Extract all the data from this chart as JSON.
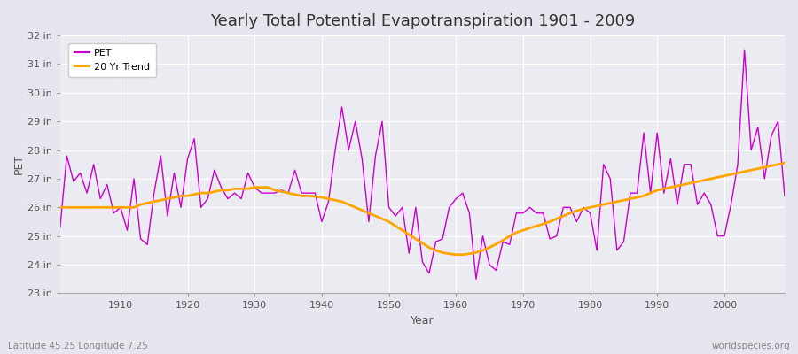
{
  "title": "Yearly Total Potential Evapotranspiration 1901 - 2009",
  "xlabel": "Year",
  "ylabel": "PET",
  "subtitle_left": "Latitude 45.25 Longitude 7.25",
  "subtitle_right": "worldspecies.org",
  "pet_color": "#cc00cc",
  "trend_color": "#ffa500",
  "bg_color": "#e6e6ee",
  "plot_bg_color": "#ebebf2",
  "ylim": [
    23,
    32
  ],
  "yticks": [
    23,
    24,
    25,
    26,
    27,
    28,
    29,
    30,
    31,
    32
  ],
  "ytick_labels": [
    "23 in",
    "24 in",
    "25 in",
    "26 in",
    "27 in",
    "28 in",
    "29 in",
    "30 in",
    "31 in",
    "32 in"
  ],
  "xlim": [
    1901,
    2009
  ],
  "xticks": [
    1910,
    1920,
    1930,
    1940,
    1950,
    1960,
    1970,
    1980,
    1990,
    2000
  ],
  "years": [
    1901,
    1902,
    1903,
    1904,
    1905,
    1906,
    1907,
    1908,
    1909,
    1910,
    1911,
    1912,
    1913,
    1914,
    1915,
    1916,
    1917,
    1918,
    1919,
    1920,
    1921,
    1922,
    1923,
    1924,
    1925,
    1926,
    1927,
    1928,
    1929,
    1930,
    1931,
    1932,
    1933,
    1934,
    1935,
    1936,
    1937,
    1938,
    1939,
    1940,
    1941,
    1942,
    1943,
    1944,
    1945,
    1946,
    1947,
    1948,
    1949,
    1950,
    1951,
    1952,
    1953,
    1954,
    1955,
    1956,
    1957,
    1958,
    1959,
    1960,
    1961,
    1962,
    1963,
    1964,
    1965,
    1966,
    1967,
    1968,
    1969,
    1970,
    1971,
    1972,
    1973,
    1974,
    1975,
    1976,
    1977,
    1978,
    1979,
    1980,
    1981,
    1982,
    1983,
    1984,
    1985,
    1986,
    1987,
    1988,
    1989,
    1990,
    1991,
    1992,
    1993,
    1994,
    1995,
    1996,
    1997,
    1998,
    1999,
    2000,
    2001,
    2002,
    2003,
    2004,
    2005,
    2006,
    2007,
    2008,
    2009
  ],
  "pet": [
    25.3,
    27.8,
    26.9,
    27.2,
    26.5,
    27.5,
    26.3,
    26.8,
    25.8,
    26.0,
    25.2,
    27.0,
    24.9,
    24.7,
    26.5,
    27.8,
    25.7,
    27.2,
    26.0,
    27.7,
    28.4,
    26.0,
    26.3,
    27.3,
    26.7,
    26.3,
    26.5,
    26.3,
    27.2,
    26.7,
    26.5,
    26.5,
    26.5,
    26.6,
    26.5,
    27.3,
    26.5,
    26.5,
    26.5,
    25.5,
    26.2,
    28.0,
    29.5,
    28.0,
    29.0,
    27.7,
    25.5,
    27.8,
    29.0,
    26.0,
    25.7,
    26.0,
    24.4,
    26.0,
    24.1,
    23.7,
    24.8,
    24.9,
    26.0,
    26.3,
    26.5,
    25.8,
    23.5,
    25.0,
    24.0,
    23.8,
    24.8,
    24.7,
    25.8,
    25.8,
    26.0,
    25.8,
    25.8,
    24.9,
    25.0,
    26.0,
    26.0,
    25.5,
    26.0,
    25.8,
    24.5,
    27.5,
    27.0,
    24.5,
    24.8,
    26.5,
    26.5,
    28.6,
    26.5,
    28.6,
    26.5,
    27.7,
    26.1,
    27.5,
    27.5,
    26.1,
    26.5,
    26.1,
    25.0,
    25.0,
    26.1,
    27.5,
    31.5,
    28.0,
    28.8,
    27.0,
    28.5,
    29.0,
    26.4
  ],
  "trend": [
    26.0,
    26.0,
    26.0,
    26.0,
    26.0,
    26.0,
    26.0,
    26.0,
    26.0,
    26.0,
    26.0,
    26.0,
    26.1,
    26.15,
    26.2,
    26.25,
    26.3,
    26.35,
    26.4,
    26.4,
    26.45,
    26.5,
    26.5,
    26.55,
    26.6,
    26.6,
    26.65,
    26.65,
    26.65,
    26.7,
    26.7,
    26.7,
    26.6,
    26.55,
    26.5,
    26.45,
    26.4,
    26.4,
    26.38,
    26.35,
    26.3,
    26.25,
    26.2,
    26.1,
    26.0,
    25.9,
    25.8,
    25.7,
    25.6,
    25.5,
    25.35,
    25.2,
    25.05,
    24.9,
    24.75,
    24.6,
    24.5,
    24.42,
    24.38,
    24.35,
    24.35,
    24.38,
    24.42,
    24.5,
    24.6,
    24.72,
    24.85,
    25.0,
    25.12,
    25.2,
    25.28,
    25.35,
    25.42,
    25.5,
    25.6,
    25.7,
    25.8,
    25.88,
    25.95,
    26.0,
    26.05,
    26.1,
    26.15,
    26.2,
    26.25,
    26.3,
    26.35,
    26.4,
    26.5,
    26.6,
    26.65,
    26.7,
    26.75,
    26.8,
    26.85,
    26.9,
    26.95,
    27.0,
    27.05,
    27.1,
    27.15,
    27.2,
    27.25,
    27.3,
    27.35,
    27.4,
    27.45,
    27.5,
    27.55
  ]
}
